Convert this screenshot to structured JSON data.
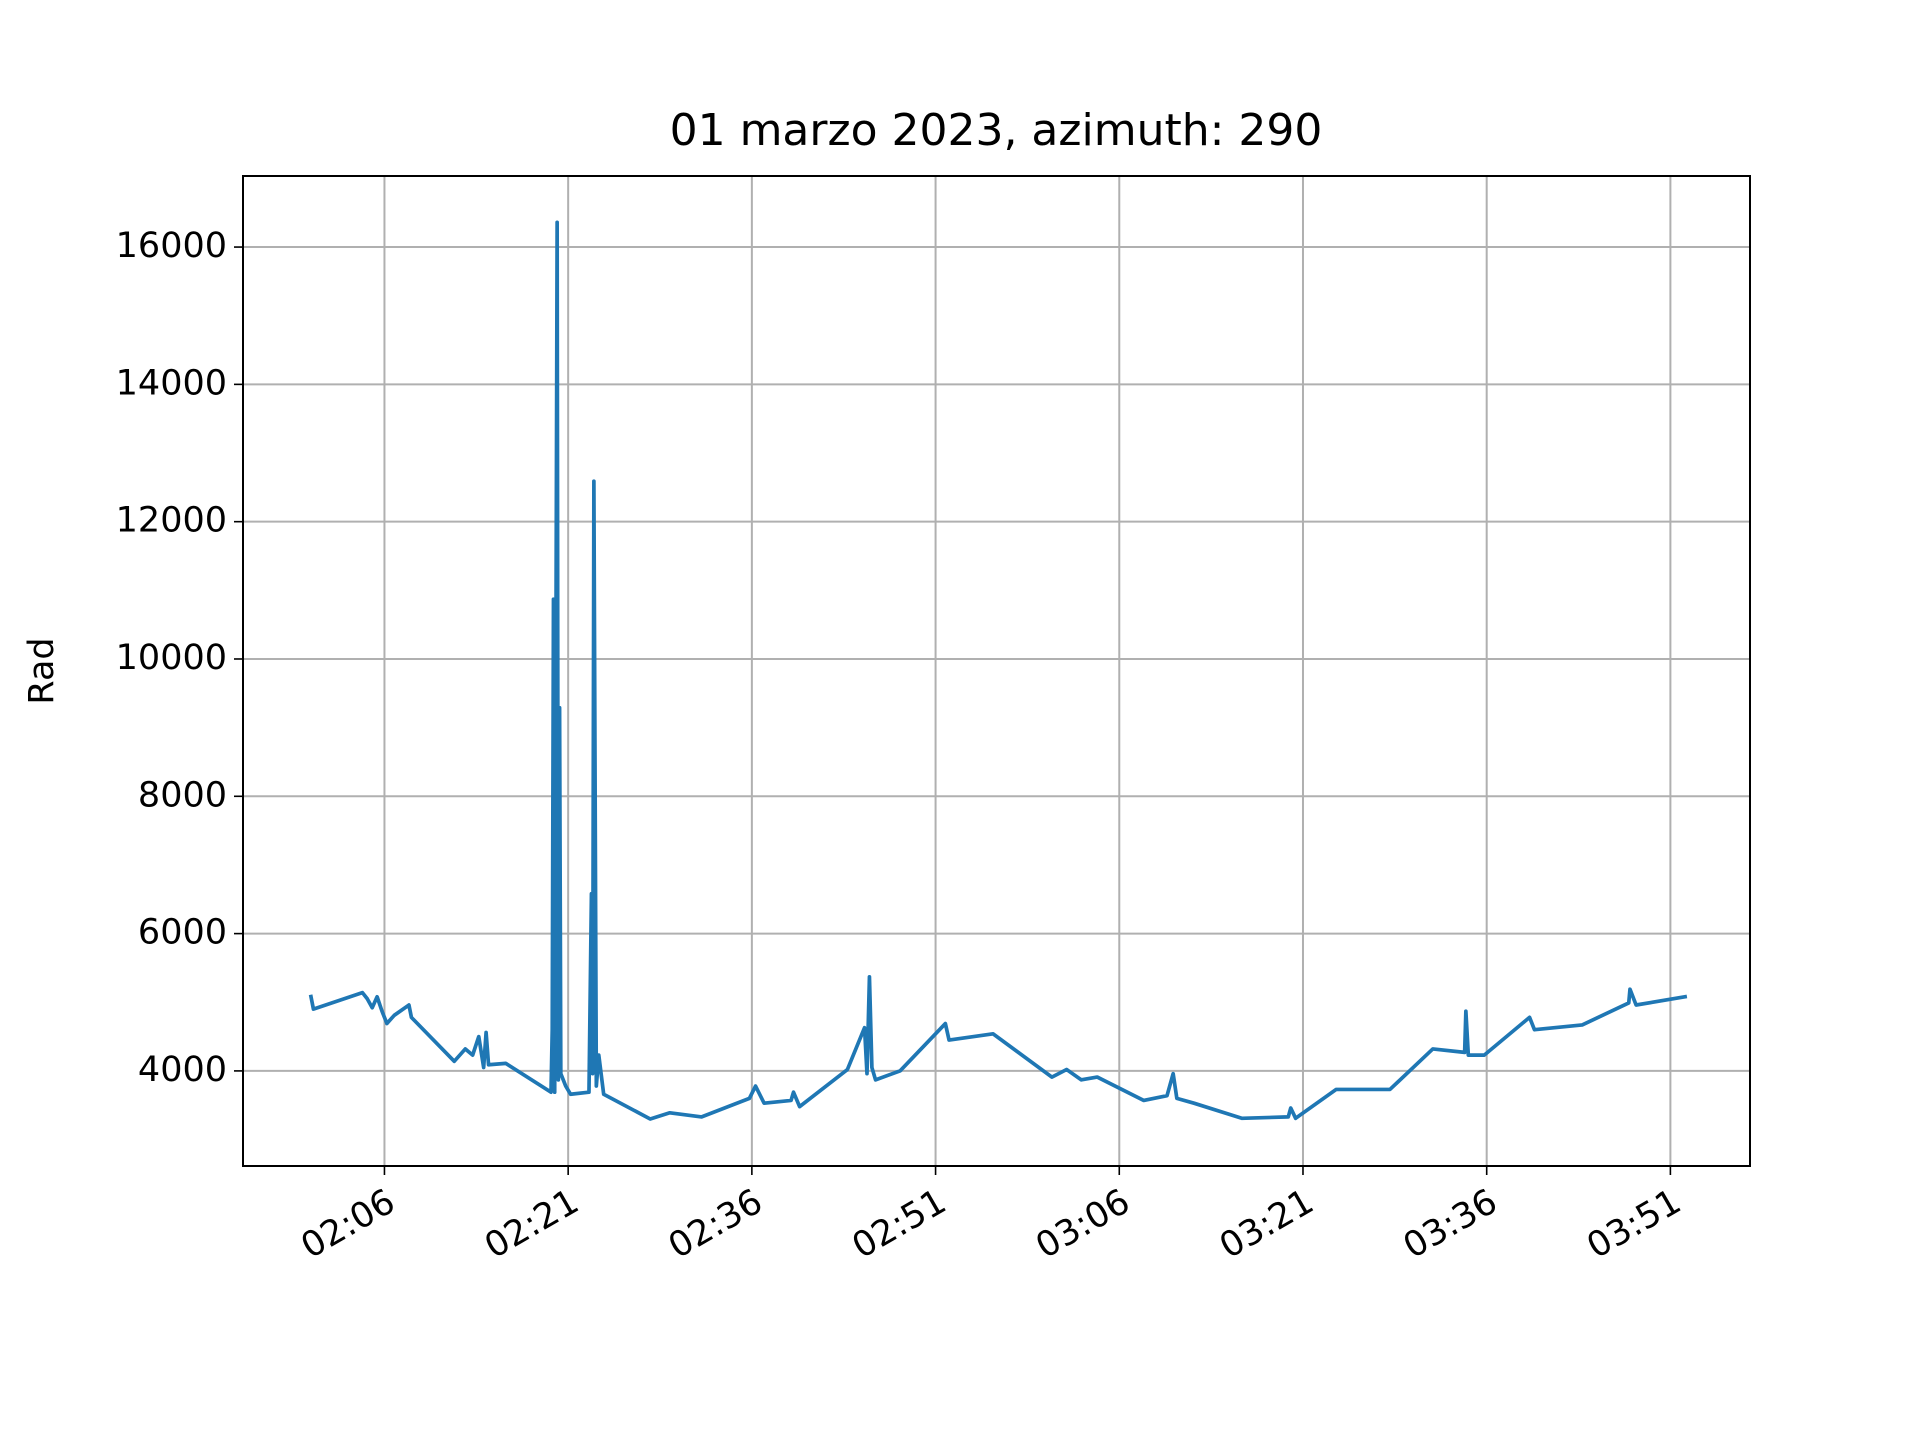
{
  "chart_data": {
    "type": "line",
    "title": "01 marzo 2023, azimuth: 290",
    "y_label": "Rad",
    "x": [
      120.0,
      120.2,
      124.2,
      124.6,
      125.0,
      125.4,
      125.8,
      126.2,
      126.8,
      128.0,
      128.2,
      131.7,
      132.6,
      133.2,
      133.7,
      134.1,
      134.3,
      134.5,
      135.9,
      139.6,
      139.7,
      139.8,
      139.9,
      140.1,
      140.2,
      140.3,
      140.4,
      140.8,
      141.2,
      142.7,
      142.9,
      143.0,
      143.1,
      143.3,
      143.5,
      143.9,
      147.7,
      149.3,
      151.9,
      155.8,
      156.3,
      157.0,
      159.2,
      159.4,
      159.9,
      163.8,
      165.2,
      165.4,
      165.6,
      165.8,
      166.1,
      168.1,
      171.8,
      172.1,
      175.7,
      180.5,
      181.7,
      182.9,
      184.2,
      188.0,
      189.9,
      190.4,
      190.7,
      192.1,
      196.0,
      199.8,
      200.0,
      200.4,
      203.7,
      208.1,
      211.6,
      214.2,
      214.3,
      214.5,
      215.8,
      219.5,
      219.9,
      223.8,
      227.6,
      227.7,
      228.2,
      232.2
    ],
    "series": [
      {
        "name": "Rad",
        "color": "#1f77b4",
        "values": [
          5083,
          4900,
          5140,
          5050,
          4920,
          5080,
          4870,
          4690,
          4810,
          4960,
          4780,
          4140,
          4320,
          4230,
          4500,
          4050,
          4560,
          4090,
          4110,
          3690,
          4600,
          10870,
          3690,
          16360,
          3870,
          9290,
          3960,
          3780,
          3660,
          3690,
          6580,
          3960,
          12590,
          3780,
          4230,
          3660,
          3300,
          3390,
          3330,
          3600,
          3780,
          3530,
          3570,
          3690,
          3480,
          4020,
          4630,
          3960,
          5370,
          4050,
          3870,
          4000,
          4690,
          4450,
          4540,
          3910,
          4020,
          3870,
          3910,
          3570,
          3640,
          3960,
          3600,
          3530,
          3310,
          3330,
          3460,
          3310,
          3730,
          3730,
          4320,
          4270,
          4870,
          4230,
          4230,
          4780,
          4600,
          4670,
          4990,
          5190,
          4960,
          5080
        ]
      }
    ],
    "xlim": [
      114.45,
      237.5
    ],
    "xticks": [
      {
        "value": 126,
        "label": "02:06"
      },
      {
        "value": 141,
        "label": "02:21"
      },
      {
        "value": 156,
        "label": "02:36"
      },
      {
        "value": 171,
        "label": "02:51"
      },
      {
        "value": 186,
        "label": "03:06"
      },
      {
        "value": 201,
        "label": "03:21"
      },
      {
        "value": 216,
        "label": "03:36"
      },
      {
        "value": 231,
        "label": "03:51"
      }
    ],
    "ylim": [
      2615,
      17035
    ],
    "yticks": [
      4000,
      6000,
      8000,
      10000,
      12000,
      14000,
      16000
    ],
    "grid": true
  }
}
